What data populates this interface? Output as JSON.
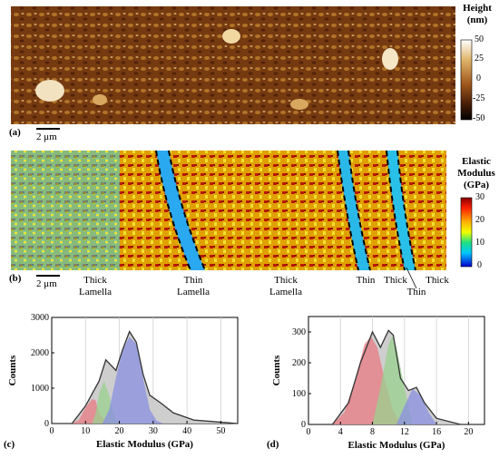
{
  "panel_a": {
    "label": "(a)",
    "scale": "2 μm",
    "colorbar": {
      "title_1": "Height",
      "title_2": "(nm)",
      "ticks": [
        "50",
        "25",
        "0",
        "-25",
        "-50"
      ]
    }
  },
  "panel_b": {
    "label": "(b)",
    "scale": "2 μm",
    "colorbar": {
      "title_1": "Elastic",
      "title_2": "Modulus",
      "title_3": "(GPa)",
      "ticks": [
        "30",
        "20",
        "10",
        "0"
      ]
    },
    "regions": [
      {
        "l1": "Thick",
        "l2": "Lamella"
      },
      {
        "l1": "Thin",
        "l2": "Lamella"
      },
      {
        "l1": "Thick",
        "l2": "Lamella"
      },
      {
        "l1": "Thin",
        "l2": ""
      },
      {
        "l1": "Thick",
        "l2": ""
      },
      {
        "l1": "",
        "l2": "Thin"
      },
      {
        "l1": "Thick",
        "l2": ""
      }
    ]
  },
  "chart_data": [
    {
      "panel": "(c)",
      "type": "area",
      "xlabel": "Elastic Modulus (GPa)",
      "ylabel": "Counts",
      "xlim": [
        0,
        55
      ],
      "ylim": [
        0,
        3000
      ],
      "xticks": [
        0,
        10,
        20,
        30,
        40,
        50
      ],
      "yticks": [
        0,
        1000,
        2000,
        3000
      ],
      "grid": "vertical",
      "colors": {
        "peak1": "#e87a82",
        "peak2": "#9ad08f",
        "peak3": "#8a8fe0",
        "total": "#c9c9c9",
        "fit": "#333333"
      },
      "series": [
        {
          "values": [
            [
              6,
              0
            ],
            [
              8,
              100
            ],
            [
              10,
              450
            ],
            [
              12,
              700
            ],
            [
              13,
              650
            ],
            [
              14,
              300
            ],
            [
              16,
              40
            ]
          ]
        },
        {
          "values": [
            [
              12,
              0
            ],
            [
              13,
              300
            ],
            [
              14,
              850
            ],
            [
              15.5,
              1200
            ],
            [
              17,
              800
            ],
            [
              18.5,
              200
            ],
            [
              20,
              0
            ]
          ]
        },
        {
          "values": [
            [
              15,
              0
            ],
            [
              17,
              400
            ],
            [
              19,
              1300
            ],
            [
              21,
              2100
            ],
            [
              23,
              2450
            ],
            [
              25,
              2250
            ],
            [
              27,
              1300
            ],
            [
              29,
              400
            ],
            [
              31,
              80
            ],
            [
              33,
              0
            ]
          ]
        },
        {
          "values": [
            [
              6,
              0
            ],
            [
              10,
              500
            ],
            [
              12,
              850
            ],
            [
              14,
              1200
            ],
            [
              16,
              1800
            ],
            [
              17,
              1700
            ],
            [
              19,
              1500
            ],
            [
              21,
              2100
            ],
            [
              23,
              2600
            ],
            [
              25,
              2300
            ],
            [
              27,
              1400
            ],
            [
              29,
              800
            ],
            [
              32,
              600
            ],
            [
              36,
              300
            ],
            [
              42,
              100
            ],
            [
              55,
              0
            ]
          ]
        }
      ]
    },
    {
      "panel": "(d)",
      "type": "area",
      "xlabel": "Elastic Modulus (GPa)",
      "ylabel": "Counts",
      "xlim": [
        0,
        22
      ],
      "ylim": [
        0,
        350
      ],
      "xticks": [
        0,
        4,
        8,
        12,
        16,
        20
      ],
      "yticks": [
        0,
        100,
        200,
        300
      ],
      "grid": "vertical",
      "colors": {
        "peak1": "#e87a82",
        "peak2": "#9ad08f",
        "peak3": "#8a8fe0",
        "total": "#c9c9c9",
        "fit": "#333333"
      },
      "series": [
        {
          "values": [
            [
              3,
              0
            ],
            [
              4.5,
              40
            ],
            [
              6,
              160
            ],
            [
              7,
              260
            ],
            [
              7.8,
              285
            ],
            [
              8.6,
              250
            ],
            [
              9.5,
              150
            ],
            [
              10.5,
              50
            ],
            [
              11.5,
              0
            ]
          ]
        },
        {
          "values": [
            [
              8,
              0
            ],
            [
              9,
              120
            ],
            [
              10,
              260
            ],
            [
              10.5,
              285
            ],
            [
              11,
              250
            ],
            [
              12,
              120
            ],
            [
              13,
              0
            ]
          ]
        },
        {
          "values": [
            [
              11,
              0
            ],
            [
              12,
              60
            ],
            [
              13,
              115
            ],
            [
              14,
              95
            ],
            [
              15,
              40
            ],
            [
              16,
              0
            ]
          ]
        },
        {
          "values": [
            [
              3,
              0
            ],
            [
              5,
              70
            ],
            [
              6.5,
              200
            ],
            [
              8,
              300
            ],
            [
              9,
              250
            ],
            [
              10,
              305
            ],
            [
              10.6,
              290
            ],
            [
              11.5,
              150
            ],
            [
              12.5,
              110
            ],
            [
              13.5,
              120
            ],
            [
              14.5,
              70
            ],
            [
              16,
              20
            ],
            [
              19,
              0
            ]
          ]
        }
      ]
    }
  ],
  "panel_c_label": "(c)",
  "panel_d_label": "(d)"
}
